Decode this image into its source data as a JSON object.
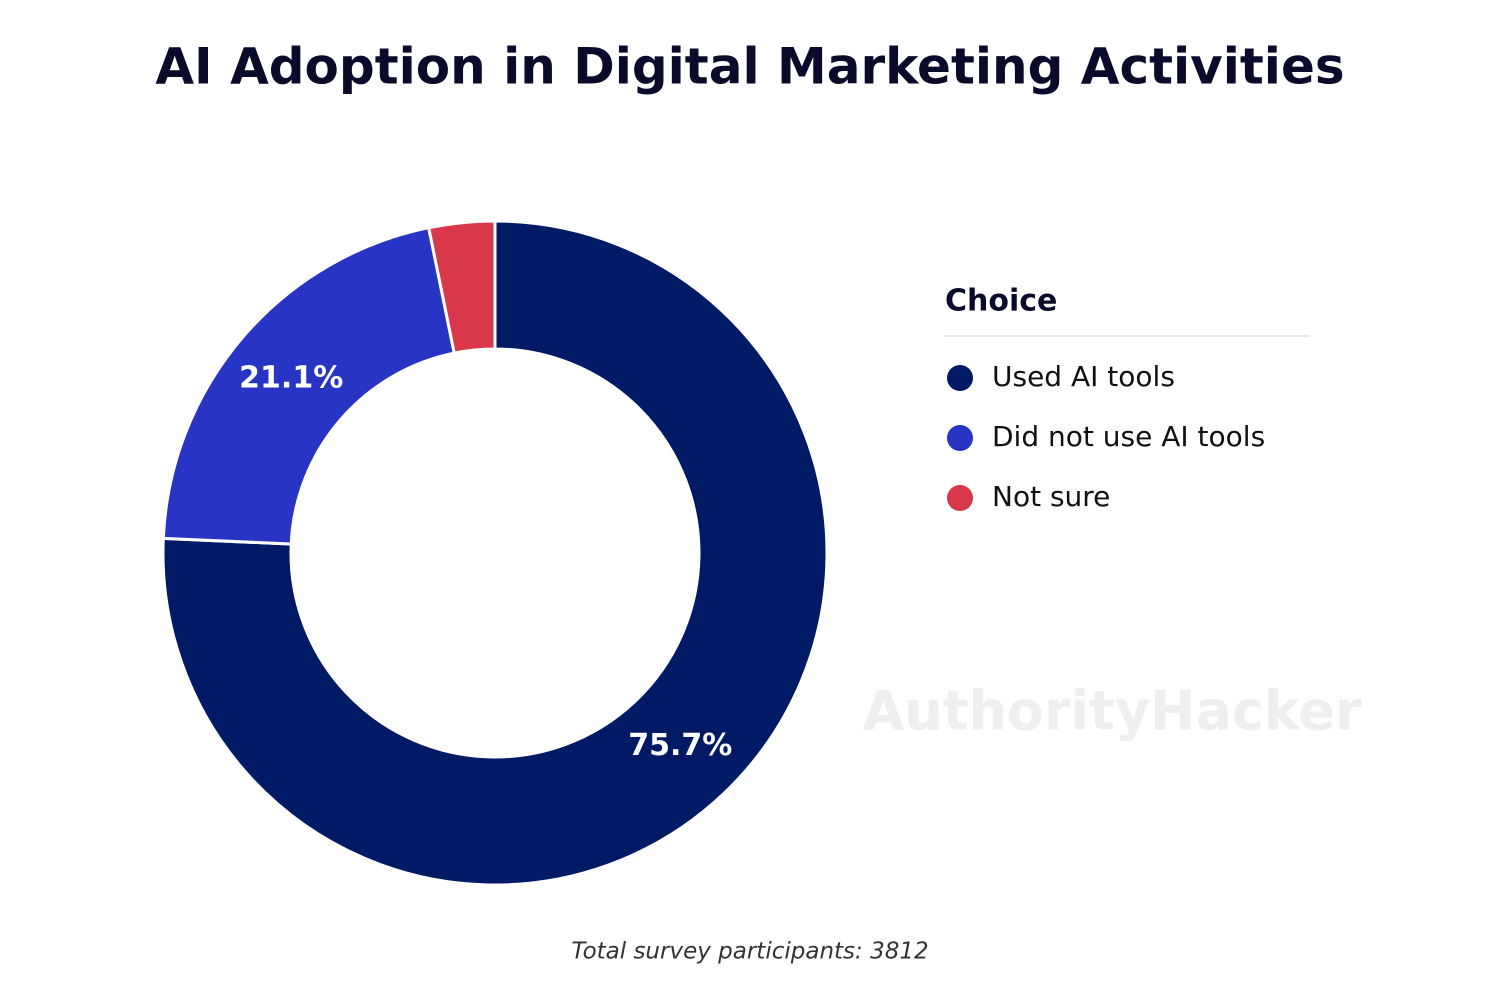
{
  "chart_data": {
    "type": "donut",
    "title": "AI Adoption in Digital Marketing Activities",
    "legend_title": "Choice",
    "categories": [
      "Used AI tools",
      "Did not use AI tools",
      "Not sure"
    ],
    "values": [
      75.7,
      21.1,
      3.2
    ],
    "value_labels": [
      "75.7%",
      "21.1%",
      null
    ],
    "colors": [
      "#001a66",
      "#2835c4",
      "#d9384a"
    ],
    "legend": "right",
    "footnote": "Total survey participants: 3812",
    "watermark": "AuthorityHacker"
  }
}
